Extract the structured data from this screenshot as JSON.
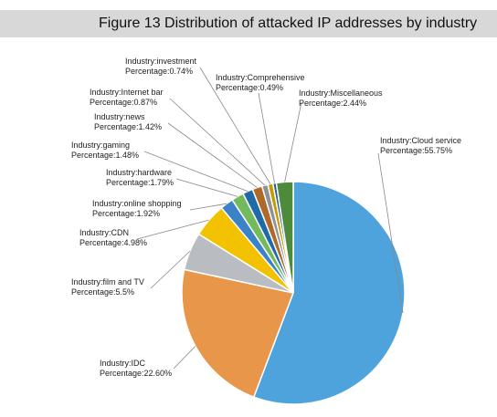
{
  "header": {
    "title": "Figure 13 Distribution of attacked IP addresses by industry"
  },
  "chart_data": {
    "type": "pie",
    "title": "Figure 13 Distribution of attacked IP addresses by industry",
    "start": "12 o'clock, clockwise",
    "slices": [
      {
        "line1": "Industry:Cloud service",
        "line2": "Percentage:55.75%",
        "value": 55.75,
        "color": "#4ea3dc"
      },
      {
        "line1": "Industry:IDC",
        "line2": "Percentage:22.60%",
        "value": 22.6,
        "color": "#e8964a"
      },
      {
        "line1": "Industry:film and TV",
        "line2": "Percentage:5.5%",
        "value": 5.5,
        "color": "#b9bcc0"
      },
      {
        "line1": "Industry:CDN",
        "line2": "Percentage:4.98%",
        "value": 4.98,
        "color": "#f2c200"
      },
      {
        "line1": "Industry:online shopping",
        "line2": "Percentage:1.92%",
        "value": 1.92,
        "color": "#3c82c8"
      },
      {
        "line1": "Industry:hardware",
        "line2": "Percentage:1.79%",
        "value": 1.79,
        "color": "#74ba5c"
      },
      {
        "line1": "Industry:gaming",
        "line2": "Percentage:1.48%",
        "value": 1.48,
        "color": "#1f6aa8"
      },
      {
        "line1": "Industry:news",
        "line2": "Percentage:1.42%",
        "value": 1.42,
        "color": "#b06a28"
      },
      {
        "line1": "Industry:Internet bar",
        "line2": "Percentage:0.87%",
        "value": 0.87,
        "color": "#8e9298"
      },
      {
        "line1": "Industry:investment",
        "line2": "Percentage:0.74%",
        "value": 0.74,
        "color": "#c79a00"
      },
      {
        "line1": "Industry:Comprehensive",
        "line2": "Percentage:0.49%",
        "value": 0.49,
        "color": "#2c5e94"
      },
      {
        "line1": "Industry:Miscellaneous",
        "line2": "Percentage:2.44%",
        "value": 2.44,
        "color": "#4e8a3c"
      }
    ]
  }
}
